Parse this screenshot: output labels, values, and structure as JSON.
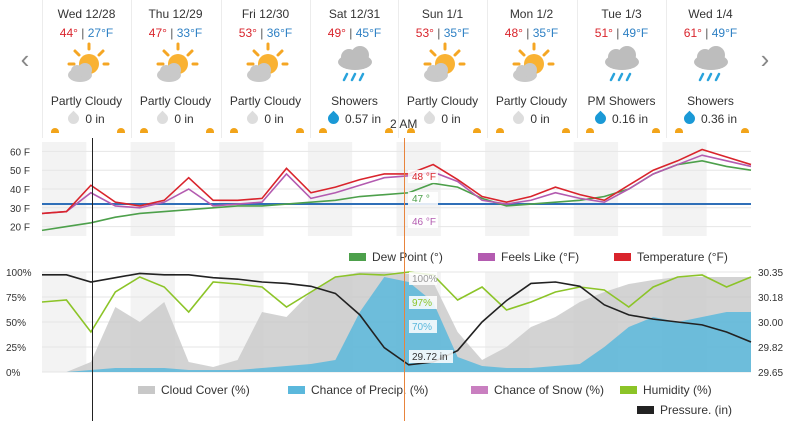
{
  "days": [
    {
      "date": "Wed 12/28",
      "hi": "44°",
      "lo": "27°F",
      "cond": "Partly Cloudy",
      "icon": "partly-cloudy-icon",
      "precip": "0 in",
      "drop": "gray"
    },
    {
      "date": "Thu 12/29",
      "hi": "47°",
      "lo": "33°F",
      "cond": "Partly Cloudy",
      "icon": "partly-cloudy-icon",
      "precip": "0 in",
      "drop": "gray"
    },
    {
      "date": "Fri 12/30",
      "hi": "53°",
      "lo": "36°F",
      "cond": "Partly Cloudy",
      "icon": "partly-cloudy-icon",
      "precip": "0 in",
      "drop": "gray"
    },
    {
      "date": "Sat 12/31",
      "hi": "49°",
      "lo": "45°F",
      "cond": "Showers",
      "icon": "showers-icon",
      "precip": "0.57 in",
      "drop": "blue"
    },
    {
      "date": "Sun 1/1",
      "hi": "53°",
      "lo": "35°F",
      "cond": "Partly Cloudy",
      "icon": "partly-cloudy-icon",
      "precip": "0 in",
      "drop": "gray"
    },
    {
      "date": "Mon 1/2",
      "hi": "48°",
      "lo": "35°F",
      "cond": "Partly Cloudy",
      "icon": "partly-cloudy-icon",
      "precip": "0 in",
      "drop": "gray"
    },
    {
      "date": "Tue 1/3",
      "hi": "51°",
      "lo": "49°F",
      "cond": "PM Showers",
      "icon": "showers-icon",
      "precip": "0.16 in",
      "drop": "blue"
    },
    {
      "date": "Wed 1/4",
      "hi": "61°",
      "lo": "49°F",
      "cond": "Showers",
      "icon": "showers-icon",
      "precip": "0.36 in",
      "drop": "blue"
    }
  ],
  "nav": {
    "prev": "‹",
    "next": "›"
  },
  "cursor_time": "2 AM",
  "colors": {
    "hi": "#d9242c",
    "lo": "#2e80c4",
    "dew": "#4da04b",
    "feels": "#b35bb0",
    "temp": "#d9242c",
    "cloud": "#c8c8c8",
    "precip": "#5bb8dc",
    "snow": "#c97fc0",
    "humidity": "#8cc428",
    "pressure": "#222222",
    "freezing": "#2f6fb8"
  },
  "chart_data": [
    {
      "type": "line",
      "title": "",
      "yticks": [
        "60 F",
        "50 F",
        "40 F",
        "30 F",
        "20 F"
      ],
      "ylim": [
        15,
        65
      ],
      "freezing_line": 32,
      "legend": [
        {
          "name": "Dew Point (°)"
        },
        {
          "name": "Feels Like (°F)"
        },
        {
          "name": "Temperature (°F)"
        }
      ],
      "series": [
        {
          "name": "Dew Point (°)",
          "values": [
            18,
            20,
            22,
            25,
            27,
            28,
            29,
            30,
            31,
            31,
            32,
            33,
            34,
            36,
            37,
            38,
            43,
            41,
            35,
            31,
            32,
            33,
            34,
            36,
            40,
            48,
            53,
            55,
            52,
            50
          ]
        },
        {
          "name": "Feels Like (°F)",
          "values": [
            27,
            28,
            38,
            31,
            30,
            33,
            40,
            31,
            32,
            33,
            48,
            35,
            38,
            42,
            46,
            47,
            49,
            44,
            34,
            32,
            34,
            38,
            35,
            33,
            40,
            48,
            53,
            58,
            55,
            52
          ]
        },
        {
          "name": "Temperature (°F)",
          "values": [
            27,
            28,
            42,
            33,
            31,
            34,
            46,
            34,
            34,
            35,
            51,
            38,
            41,
            45,
            48,
            48,
            53,
            45,
            36,
            33,
            36,
            41,
            37,
            34,
            42,
            50,
            55,
            61,
            57,
            53
          ]
        }
      ],
      "cursor_labels": [
        "48 °F",
        "47 °",
        "46 °F"
      ]
    },
    {
      "type": "area",
      "title": "",
      "yticks_left": [
        "100%",
        "75%",
        "50%",
        "25%",
        "0%"
      ],
      "yticks_right": [
        "30.35",
        "30.18",
        "30.00",
        "29.82",
        "29.65"
      ],
      "legend": [
        {
          "name": "Cloud Cover (%)"
        },
        {
          "name": "Chance of Precip. (%)"
        },
        {
          "name": "Chance of Snow (%)"
        },
        {
          "name": "Humidity (%)"
        },
        {
          "name": "Pressure. (in)"
        }
      ],
      "series": [
        {
          "name": "Cloud Cover (%)",
          "values": [
            0,
            0,
            10,
            65,
            50,
            70,
            10,
            5,
            12,
            60,
            55,
            80,
            95,
            100,
            100,
            98,
            90,
            40,
            12,
            25,
            45,
            55,
            70,
            80,
            88,
            92,
            95,
            95,
            95,
            95
          ]
        },
        {
          "name": "Chance of Precip. (%)",
          "values": [
            0,
            0,
            2,
            4,
            4,
            4,
            2,
            2,
            2,
            4,
            6,
            8,
            12,
            60,
            95,
            90,
            70,
            15,
            6,
            4,
            4,
            6,
            8,
            25,
            45,
            55,
            50,
            55,
            60,
            60
          ]
        },
        {
          "name": "Chance of Snow (%)",
          "values": [
            0,
            0,
            0,
            0,
            0,
            0,
            0,
            0,
            0,
            0,
            0,
            0,
            0,
            0,
            0,
            0,
            0,
            0,
            0,
            0,
            0,
            0,
            0,
            0,
            0,
            0,
            0,
            0,
            0,
            0
          ]
        },
        {
          "name": "Humidity (%)",
          "values": [
            70,
            72,
            40,
            80,
            95,
            85,
            60,
            90,
            88,
            85,
            65,
            80,
            95,
            98,
            97,
            100,
            97,
            72,
            85,
            62,
            70,
            80,
            85,
            82,
            65,
            85,
            95,
            97,
            85,
            95
          ]
        },
        {
          "name": "Pressure. (in)",
          "values": [
            30.33,
            30.33,
            30.28,
            30.31,
            30.34,
            30.33,
            30.33,
            30.31,
            30.3,
            30.28,
            30.27,
            30.25,
            30.2,
            30.05,
            29.82,
            29.7,
            29.72,
            29.8,
            30.0,
            30.15,
            30.27,
            30.28,
            30.25,
            30.12,
            30.05,
            30.02,
            30.0,
            29.98,
            29.93,
            29.86
          ]
        }
      ],
      "cursor_labels": [
        "100%",
        "97%",
        "70%",
        "29.72 in"
      ]
    }
  ]
}
